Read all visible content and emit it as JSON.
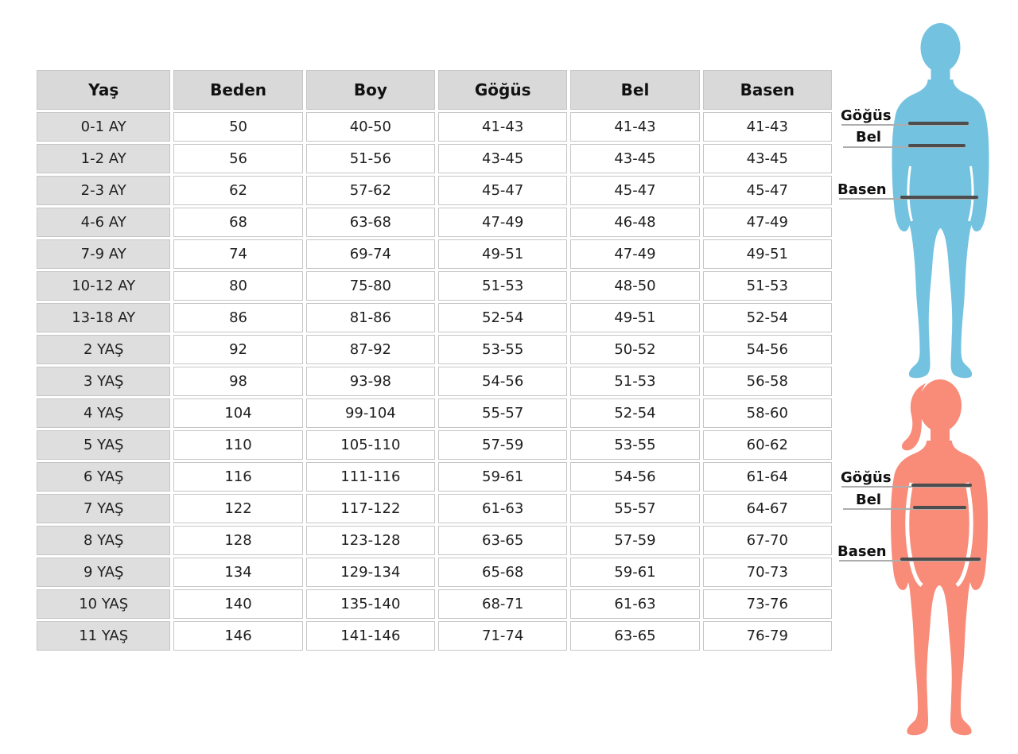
{
  "chart_data": {
    "type": "table",
    "title": "",
    "columns": [
      "Yaş",
      "Beden",
      "Boy",
      "Göğüs",
      "Bel",
      "Basen"
    ],
    "rows": [
      [
        "0-1 AY",
        "50",
        "40-50",
        "41-43",
        "41-43",
        "41-43"
      ],
      [
        "1-2 AY",
        "56",
        "51-56",
        "43-45",
        "43-45",
        "43-45"
      ],
      [
        "2-3 AY",
        "62",
        "57-62",
        "45-47",
        "45-47",
        "45-47"
      ],
      [
        "4-6 AY",
        "68",
        "63-68",
        "47-49",
        "46-48",
        "47-49"
      ],
      [
        "7-9 AY",
        "74",
        "69-74",
        "49-51",
        "47-49",
        "49-51"
      ],
      [
        "10-12 AY",
        "80",
        "75-80",
        "51-53",
        "48-50",
        "51-53"
      ],
      [
        "13-18 AY",
        "86",
        "81-86",
        "52-54",
        "49-51",
        "52-54"
      ],
      [
        "2 YAŞ",
        "92",
        "87-92",
        "53-55",
        "50-52",
        "54-56"
      ],
      [
        "3 YAŞ",
        "98",
        "93-98",
        "54-56",
        "51-53",
        "56-58"
      ],
      [
        "4 YAŞ",
        "104",
        "99-104",
        "55-57",
        "52-54",
        "58-60"
      ],
      [
        "5 YAŞ",
        "110",
        "105-110",
        "57-59",
        "53-55",
        "60-62"
      ],
      [
        "6 YAŞ",
        "116",
        "111-116",
        "59-61",
        "54-56",
        "61-64"
      ],
      [
        "7 YAŞ",
        "122",
        "117-122",
        "61-63",
        "55-57",
        "64-67"
      ],
      [
        "8 YAŞ",
        "128",
        "123-128",
        "63-65",
        "57-59",
        "67-70"
      ],
      [
        "9 YAŞ",
        "134",
        "129-134",
        "65-68",
        "59-61",
        "70-73"
      ],
      [
        "10 YAŞ",
        "140",
        "135-140",
        "68-71",
        "61-63",
        "73-76"
      ],
      [
        "11 YAŞ",
        "146",
        "141-146",
        "71-74",
        "63-65",
        "76-79"
      ]
    ]
  },
  "figure_labels": {
    "chest": "Göğüs",
    "waist": "Bel",
    "hip": "Basen"
  },
  "colors": {
    "boy_silhouette": "#72c2e0",
    "girl_silhouette": "#f98b79",
    "measure_bar": "#4d4d4d",
    "measure_line": "#adadad",
    "header_bg": "#d9d9d9",
    "row_head_bg": "#dedede",
    "cell_border": "#c6c6c6"
  }
}
